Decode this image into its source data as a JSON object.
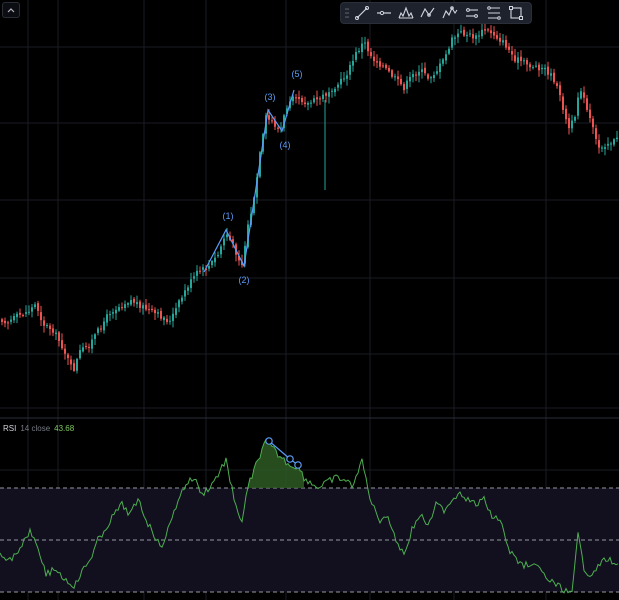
{
  "toolbar": {
    "tools": [
      {
        "name": "trend-line-icon"
      },
      {
        "name": "horizontal-ray-icon"
      },
      {
        "name": "head-shoulders-icon"
      },
      {
        "name": "abcd-pattern-icon"
      },
      {
        "name": "elliott-wave-icon"
      },
      {
        "name": "parallel-channel-icon"
      },
      {
        "name": "fib-retracement-icon"
      },
      {
        "name": "rectangle-icon"
      }
    ]
  },
  "collapse_icon": "chevron-up-icon",
  "rsi": {
    "name": "RSI",
    "params": "14 close",
    "value": "43.68"
  },
  "elliott_labels": [
    "(1)",
    "(2)",
    "(3)",
    "(4)",
    "(5)"
  ],
  "colors": {
    "up": "#26a69a",
    "down": "#ef5350",
    "rsi_line": "#4caf50",
    "rsi_value": "#7ec95f",
    "drawing": "#5b9cf6",
    "grid": "#1a1c22"
  }
}
